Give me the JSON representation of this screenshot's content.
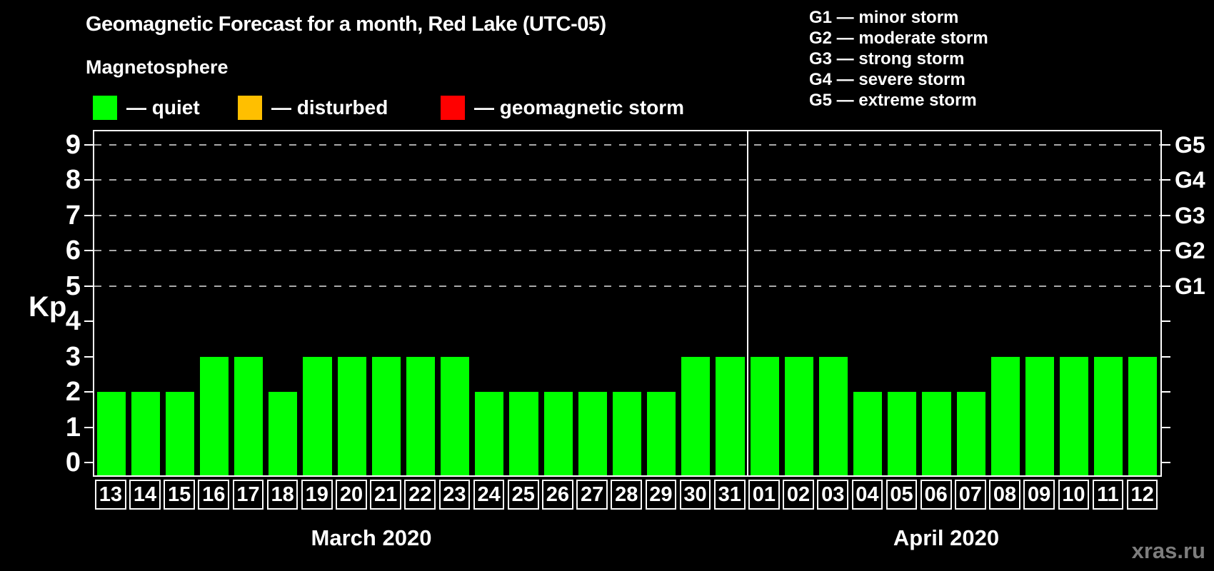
{
  "title": "Geomagnetic Forecast for a month, Red Lake (UTC-05)",
  "legend": {
    "heading": "Magnetosphere",
    "items": [
      {
        "name": "quiet",
        "color": "#00ff00",
        "label": "— quiet"
      },
      {
        "name": "disturbed",
        "color": "#ffbf00",
        "label": "— disturbed"
      },
      {
        "name": "geomagnetic-storm",
        "color": "#ff0000",
        "label": "— geomagnetic storm"
      }
    ]
  },
  "g_legend": {
    "items": [
      "G1 — minor storm",
      "G2 — moderate storm",
      "G3 — strong storm",
      "G4 — severe storm",
      "G5 — extreme storm"
    ]
  },
  "chart_data": {
    "type": "bar",
    "title": "Geomagnetic Forecast for a month, Red Lake (UTC-05)",
    "ylabel": "Kp",
    "ylim": [
      0,
      9
    ],
    "yticks": [
      0,
      1,
      2,
      3,
      4,
      5,
      6,
      7,
      8,
      9
    ],
    "grid_levels_kp": [
      5,
      6,
      7,
      8,
      9
    ],
    "grid_on": true,
    "legend_position": "top",
    "right_axis": [
      {
        "kp": 5,
        "label": "G1"
      },
      {
        "kp": 6,
        "label": "G2"
      },
      {
        "kp": 7,
        "label": "G3"
      },
      {
        "kp": 8,
        "label": "G4"
      },
      {
        "kp": 9,
        "label": "G5"
      }
    ],
    "bar_color": "#00ff00",
    "months": [
      {
        "label": "March 2020",
        "days": [
          "13",
          "14",
          "15",
          "16",
          "17",
          "18",
          "19",
          "20",
          "21",
          "22",
          "23",
          "24",
          "25",
          "26",
          "27",
          "28",
          "29",
          "30",
          "31"
        ],
        "values": [
          2,
          2,
          2,
          3,
          3,
          2,
          3,
          3,
          3,
          3,
          3,
          2,
          2,
          2,
          2,
          2,
          2,
          3,
          3
        ]
      },
      {
        "label": "April 2020",
        "days": [
          "01",
          "02",
          "03",
          "04",
          "05",
          "06",
          "07",
          "08",
          "09",
          "10",
          "11",
          "12"
        ],
        "values": [
          3,
          3,
          3,
          2,
          2,
          2,
          2,
          3,
          3,
          3,
          3,
          3
        ]
      }
    ]
  },
  "watermark": "xras.ru"
}
